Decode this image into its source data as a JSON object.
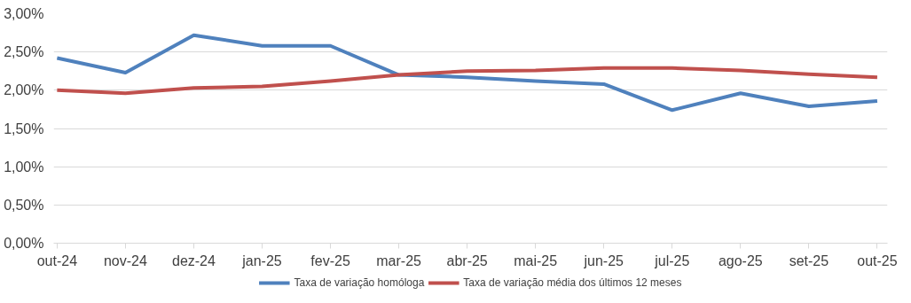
{
  "chart_data": {
    "type": "line",
    "categories": [
      "out-24",
      "nov-24",
      "dez-24",
      "jan-25",
      "fev-25",
      "mar-25",
      "abr-25",
      "mai-25",
      "jun-25",
      "jul-25",
      "ago-25",
      "set-25",
      "out-25"
    ],
    "series": [
      {
        "name": "Taxa de variação homóloga",
        "color": "#4f81bd",
        "values": [
          2.42,
          2.23,
          2.72,
          2.58,
          2.58,
          2.2,
          2.17,
          2.12,
          2.08,
          1.74,
          1.96,
          1.79,
          1.86
        ]
      },
      {
        "name": "Taxa de variação média dos últimos 12 meses",
        "color": "#c0504d",
        "values": [
          2.0,
          1.96,
          2.03,
          2.05,
          2.12,
          2.2,
          2.25,
          2.26,
          2.29,
          2.29,
          2.26,
          2.21,
          2.17
        ]
      }
    ],
    "ylim": [
      0,
      3
    ],
    "yticks": [
      {
        "value": 0,
        "label": "0,00%"
      },
      {
        "value": 0.5,
        "label": "0,50%"
      },
      {
        "value": 1,
        "label": "1,00%"
      },
      {
        "value": 1.5,
        "label": "1,50%"
      },
      {
        "value": 2,
        "label": "2,00%"
      },
      {
        "value": 2.5,
        "label": "2,50%"
      },
      {
        "value": 3,
        "label": "3,00%"
      }
    ],
    "grid": "y",
    "legend": "bottom",
    "marker": "none",
    "line_style": "solid"
  }
}
